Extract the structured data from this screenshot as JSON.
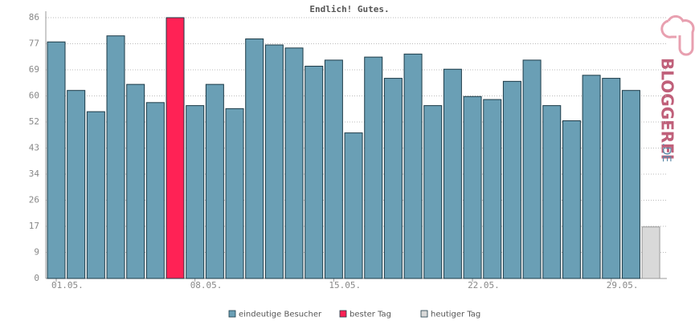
{
  "chart_data": {
    "type": "bar",
    "title": "Endlich! Gutes.",
    "categories": [
      "01.05.",
      null,
      null,
      null,
      null,
      null,
      null,
      "08.05.",
      null,
      null,
      null,
      null,
      null,
      null,
      "15.05.",
      null,
      null,
      null,
      null,
      null,
      null,
      "22.05.",
      null,
      null,
      null,
      null,
      null,
      null,
      "29.05.",
      null,
      null
    ],
    "series": [
      {
        "name": "eindeutige Besucher",
        "color": "#6a9fb5",
        "values": [
          78,
          62,
          55,
          80,
          64,
          58,
          null,
          57,
          64,
          56,
          79,
          77,
          76,
          70,
          72,
          48,
          73,
          66,
          74,
          57,
          69,
          60,
          59,
          65,
          72,
          57,
          52,
          67,
          66,
          62,
          null
        ]
      },
      {
        "name": "bester Tag",
        "color": "#ff2255",
        "values": [
          null,
          null,
          null,
          null,
          null,
          null,
          86,
          null,
          null,
          null,
          null,
          null,
          null,
          null,
          null,
          null,
          null,
          null,
          null,
          null,
          null,
          null,
          null,
          null,
          null,
          null,
          null,
          null,
          null,
          null,
          null
        ]
      },
      {
        "name": "heutiger Tag",
        "color": "#d9d9d9",
        "values": [
          null,
          null,
          null,
          null,
          null,
          null,
          null,
          null,
          null,
          null,
          null,
          null,
          null,
          null,
          null,
          null,
          null,
          null,
          null,
          null,
          null,
          null,
          null,
          null,
          null,
          null,
          null,
          null,
          null,
          null,
          17
        ]
      }
    ],
    "ylim": [
      0,
      86
    ],
    "yticks": [
      0,
      {
        "value": 8.6,
        "label": "9"
      },
      {
        "value": 17.2,
        "label": "17"
      },
      {
        "value": 25.8,
        "label": "26"
      },
      {
        "value": 34.4,
        "label": "34"
      },
      43,
      {
        "value": 51.6,
        "label": "52"
      },
      {
        "value": 60.2,
        "label": "60"
      },
      {
        "value": 68.8,
        "label": "69"
      },
      {
        "value": 77.4,
        "label": "77"
      },
      86
    ],
    "grid": true,
    "logo": {
      "name": "BLOGGEREI",
      "tld": ".DE"
    }
  }
}
